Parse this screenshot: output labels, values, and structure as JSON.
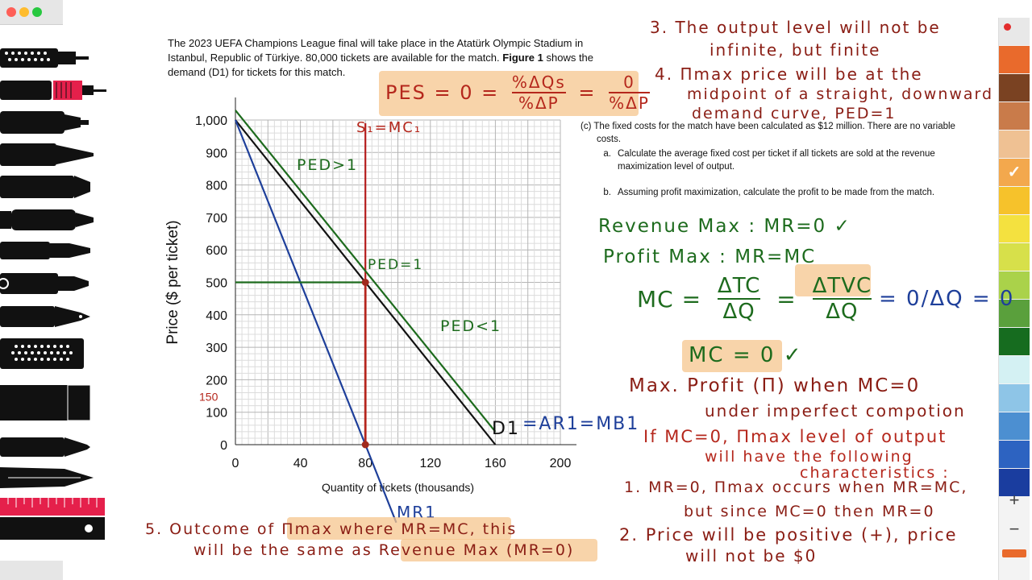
{
  "window": {
    "light_colors": [
      "#fe5f57",
      "#febc2e",
      "#28c840"
    ]
  },
  "toolbox": {
    "eraser_label": "eraser"
  },
  "palette": {
    "colors": [
      "#e8e8e8",
      "#e96a2c",
      "#7a4222",
      "#c97b4a",
      "#efc193",
      "#f3a84d",
      "#f6c22b",
      "#f4e13f",
      "#d7e04a",
      "#aad24a",
      "#5aa03c",
      "#166c1f",
      "#d4f1f3",
      "#8ec5e7",
      "#4c8fd1",
      "#2d63c1",
      "#1a3d9f"
    ],
    "selected_index": 5,
    "add_label": "+",
    "remove_label": "−"
  },
  "question": {
    "intro_line1": "The 2023 UEFA Champions League final will take place in the Atatürk Olympic Stadium in",
    "intro_line2": "Istanbul, Republic of Türkiye. 80,000 tickets are available for the match.",
    "intro_fig": "Figure 1",
    "intro_line2b": "shows the",
    "intro_line3": "demand (D1) for tickets for this match.",
    "part_c": "(c)  The fixed costs for the match have been calculated as $12 million. There are no variable",
    "part_c2": "costs.",
    "a_label": "a.",
    "a_text1": "Calculate the average fixed cost per ticket if all tickets are sold at the revenue",
    "a_text2": "maximization level of output.",
    "b_label": "b.",
    "b_text": "Assuming profit maximization, calculate the profit to be made from the match."
  },
  "chart_data": {
    "type": "line",
    "xlabel": "Quantity of tickets (thousands)",
    "ylabel": "Price ($ per ticket)",
    "xlim": [
      0,
      200
    ],
    "ylim": [
      0,
      1000
    ],
    "x_ticks": [
      0,
      40,
      80,
      120,
      160,
      200
    ],
    "y_ticks": [
      0,
      100,
      200,
      300,
      400,
      500,
      600,
      700,
      800,
      900,
      1000
    ],
    "x_tick_labels": [
      "0",
      "40",
      "80",
      "120",
      "160",
      "200"
    ],
    "y_tick_labels": [
      "0",
      "100",
      "200",
      "300",
      "400",
      "500",
      "600",
      "700",
      "800",
      "900",
      "1,000"
    ],
    "series": [
      {
        "name": "D1",
        "color": "#111111",
        "x": [
          0,
          160
        ],
        "y": [
          1000,
          0
        ]
      },
      {
        "name": "MR1",
        "color": "#1e3f9a",
        "x": [
          0,
          80,
          99
        ],
        "y": [
          1000,
          0,
          -240
        ]
      },
      {
        "name": "S1=MC1",
        "color": "#b51d1d",
        "x": [
          80,
          80
        ],
        "y": [
          0,
          990
        ]
      },
      {
        "name": "",
        "color": "#1d6b1d",
        "x": [
          0,
          160
        ],
        "y": [
          1030,
          40
        ]
      },
      {
        "name": "",
        "color": "#1d6b1d",
        "x": [
          0,
          80
        ],
        "y": [
          500,
          500
        ]
      }
    ],
    "points": [
      {
        "x": 80,
        "y": 500
      },
      {
        "x": 80,
        "y": 0
      }
    ],
    "grid": true,
    "annotations": {
      "y150": "150"
    }
  },
  "handwriting": {
    "pes": "PES = 0 = %ΔQs / %ΔP = 0 / %ΔP",
    "pes_left": "PES = 0 =",
    "pes_num1": "%ΔQs",
    "pes_den1": "%ΔP",
    "pes_eq": "=",
    "pes_num2": "0",
    "pes_den2": "%ΔP",
    "s_mc": "S₁=MC₁",
    "ped_gt": "PED>1",
    "ped_eq": "PED=1",
    "ped_lt": "PED<1",
    "d1_label": "D1",
    "ar_label": "=AR1=MB1",
    "mr1_label": "MR1",
    "note3_a": "3. The output level will not be",
    "note3_b": "infinite, but finite",
    "note4_a": "4. Πmax price will be at the",
    "note4_b": "midpoint of a straight, downward",
    "note4_c": "demand curve, PED=1",
    "rev_max": "Revenue Max : MR=0 ✓",
    "profit_max": "Profit Max : MR=MC",
    "mc_eq": "MC =",
    "mc_frac1_n": "ΔTC",
    "mc_frac1_d": "ΔQ",
    "mc_frac2_n": "ΔTVC",
    "mc_frac2_d": "ΔQ",
    "mc_eqs": "=",
    "mc_blue": "= 0/ΔQ = 0",
    "mc_zero": "MC = 0 ✓",
    "maxprofit_a": "Max. Profit (Π) when MC=0",
    "maxprofit_b": "under imperfect compotion",
    "if_a": "If MC=0, Πmax level of output",
    "if_b": "will have the following",
    "if_c": "characteristics :",
    "item1_a": "1. MR=0, Πmax occurs when MR=MC,",
    "item1_b": "but since MC=0 then MR=0",
    "item2_a": "2. Price will be positive (+), price",
    "item2_b": "will not be $0",
    "item5_a": "5. Outcome of Πmax where MR=MC, this",
    "item5_b": "will be the same as Revenue Max (MR=0)"
  }
}
